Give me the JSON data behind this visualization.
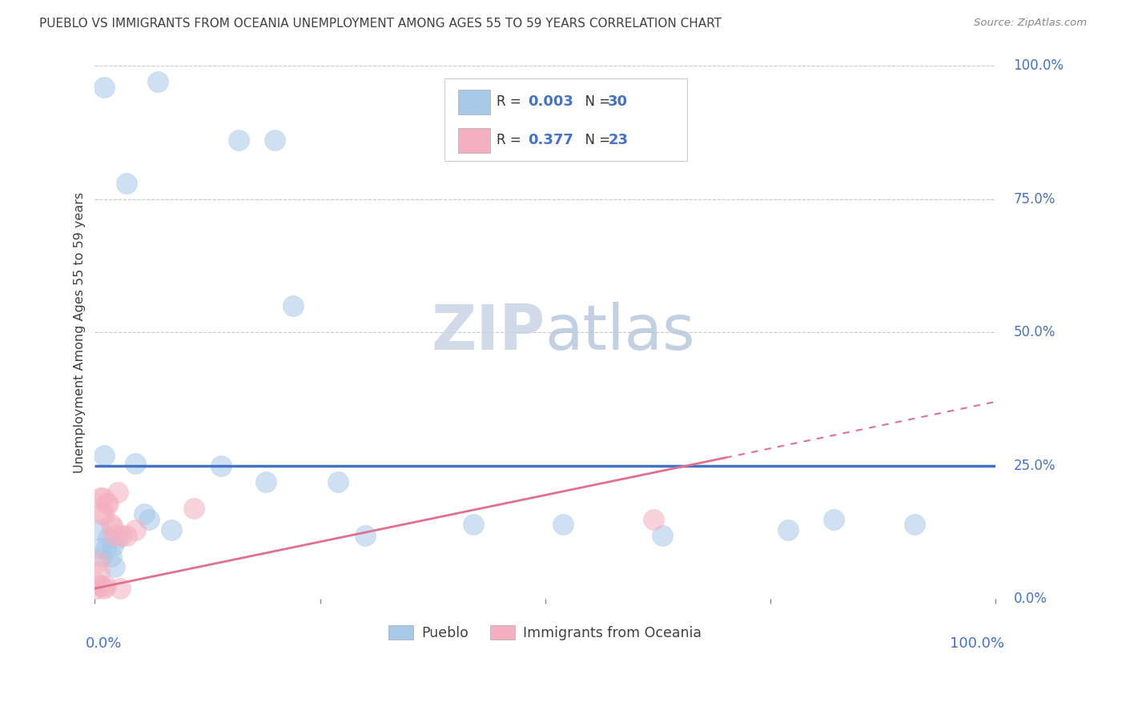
{
  "title": "PUEBLO VS IMMIGRANTS FROM OCEANIA UNEMPLOYMENT AMONG AGES 55 TO 59 YEARS CORRELATION CHART",
  "source": "Source: ZipAtlas.com",
  "ylabel": "Unemployment Among Ages 55 to 59 years",
  "legend1_label": "Pueblo",
  "legend2_label": "Immigrants from Oceania",
  "r1_val": "0.003",
  "n1_val": "30",
  "r2_val": "0.377",
  "n2_val": "23",
  "blue_scatter_color": "#a8c8e8",
  "pink_scatter_color": "#f4b0c0",
  "blue_line_color": "#4472c4",
  "pink_line_color": "#e07090",
  "grid_color": "#c8c8c8",
  "axis_label_color": "#4472c4",
  "title_color": "#404040",
  "watermark_text": "ZIPatlas",
  "watermark_color": "#ccd8e8",
  "pueblo_x": [
    1.0,
    7.0,
    16.0,
    20.0,
    3.5,
    4.5,
    6.0,
    8.5,
    22.0,
    30.0,
    0.5,
    1.5,
    2.0,
    2.5,
    0.8,
    1.2,
    1.8,
    2.2,
    0.6,
    5.5,
    1.0,
    14.0,
    52.0,
    27.0,
    63.0,
    77.0,
    91.0,
    82.0,
    19.0,
    42.0
  ],
  "pueblo_y": [
    96.0,
    97.0,
    86.0,
    86.0,
    78.0,
    25.5,
    15.0,
    13.0,
    55.0,
    12.0,
    13.0,
    11.5,
    10.0,
    11.5,
    8.0,
    9.5,
    8.0,
    6.0,
    9.5,
    16.0,
    27.0,
    25.0,
    14.0,
    22.0,
    12.0,
    13.0,
    14.0,
    15.0,
    22.0,
    14.0
  ],
  "oceania_x": [
    0.3,
    0.5,
    0.6,
    0.8,
    1.0,
    1.5,
    2.0,
    2.5,
    3.5,
    4.5,
    0.2,
    0.9,
    1.3,
    2.2,
    0.15,
    0.7,
    1.2,
    2.8,
    3.0,
    62.0,
    1.0,
    1.8,
    11.0
  ],
  "oceania_y": [
    7.0,
    5.0,
    19.0,
    16.0,
    16.0,
    18.0,
    13.5,
    20.0,
    12.0,
    13.0,
    2.0,
    19.0,
    18.0,
    12.0,
    3.0,
    2.5,
    2.5,
    2.0,
    12.0,
    15.0,
    2.0,
    14.0,
    17.0
  ],
  "blue_reg_y_intercept": 25.0,
  "blue_reg_slope": 0.0,
  "pink_reg_y_intercept": 2.0,
  "pink_reg_slope": 0.35,
  "xlim": [
    0,
    100
  ],
  "ylim": [
    0,
    100
  ],
  "yticks": [
    0,
    25,
    50,
    75,
    100
  ],
  "ytick_labels": [
    "0.0%",
    "25.0%",
    "50.0%",
    "75.0%",
    "100.0%"
  ]
}
